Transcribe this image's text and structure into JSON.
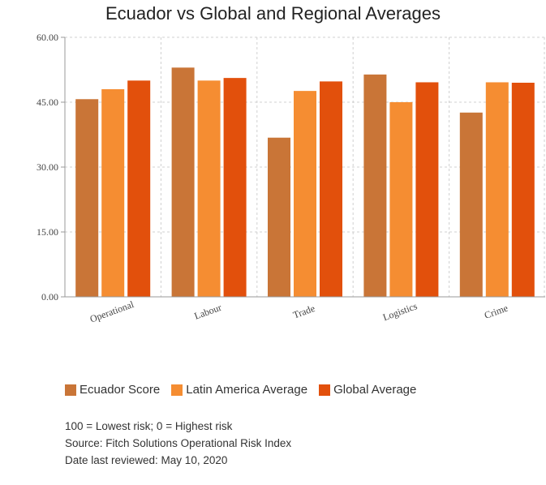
{
  "chart_data": {
    "type": "bar",
    "title": "Ecuador vs Global and Regional Averages",
    "categories": [
      "Operational",
      "Labour",
      "Trade",
      "Logistics",
      "Crime"
    ],
    "series": [
      {
        "name": "Ecuador Score",
        "color": "#C97537",
        "values": [
          45.7,
          53.0,
          36.8,
          51.4,
          42.6
        ]
      },
      {
        "name": "Latin America Average",
        "color": "#F58D32",
        "values": [
          48.0,
          50.0,
          47.6,
          45.0,
          49.6
        ]
      },
      {
        "name": "Global Average",
        "color": "#E2500C",
        "values": [
          50.0,
          50.6,
          49.8,
          49.6,
          49.5
        ]
      }
    ],
    "y_ticks": [
      "0.00",
      "15.00",
      "30.00",
      "45.00",
      "60.00"
    ],
    "ylim": [
      0,
      60
    ],
    "grid": true,
    "legend_position": "bottom"
  },
  "notes": [
    "100 = Lowest risk; 0 = Highest risk",
    "Source: Fitch Solutions Operational Risk Index",
    "Date last reviewed: May 10, 2020"
  ]
}
